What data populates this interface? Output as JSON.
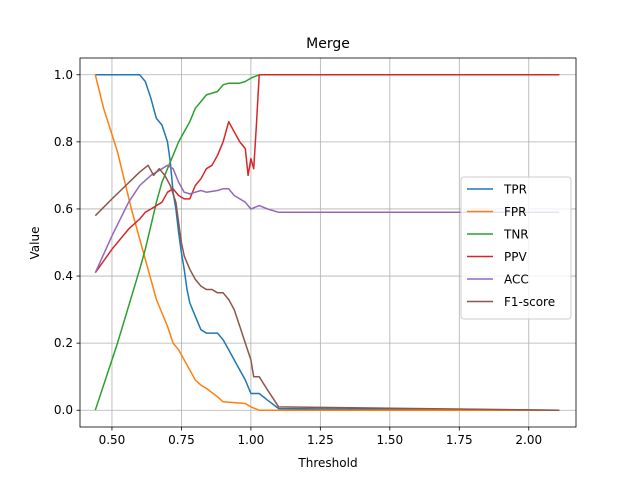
{
  "chart_data": {
    "type": "line",
    "title": "Merge",
    "xlabel": "Threshold",
    "ylabel": "Value",
    "xlim": [
      0.385,
      2.17
    ],
    "ylim": [
      -0.05,
      1.05
    ],
    "xticks": [
      0.5,
      0.75,
      1.0,
      1.25,
      1.5,
      1.75,
      2.0
    ],
    "xtick_labels": [
      "0.50",
      "0.75",
      "1.00",
      "1.25",
      "1.50",
      "1.75",
      "2.00"
    ],
    "yticks": [
      0.0,
      0.2,
      0.4,
      0.6,
      0.8,
      1.0
    ],
    "ytick_labels": [
      "0.0",
      "0.2",
      "0.4",
      "0.6",
      "0.8",
      "1.0"
    ],
    "grid": true,
    "legend_position": "center-right",
    "series": [
      {
        "name": "TPR",
        "color": "#1f77b4",
        "points": [
          [
            0.44,
            1.0
          ],
          [
            0.6,
            1.0
          ],
          [
            0.62,
            0.98
          ],
          [
            0.64,
            0.93
          ],
          [
            0.65,
            0.9
          ],
          [
            0.66,
            0.87
          ],
          [
            0.68,
            0.85
          ],
          [
            0.7,
            0.8
          ],
          [
            0.71,
            0.74
          ],
          [
            0.72,
            0.65
          ],
          [
            0.73,
            0.6
          ],
          [
            0.74,
            0.53
          ],
          [
            0.75,
            0.47
          ],
          [
            0.76,
            0.42
          ],
          [
            0.77,
            0.36
          ],
          [
            0.78,
            0.32
          ],
          [
            0.8,
            0.28
          ],
          [
            0.82,
            0.24
          ],
          [
            0.84,
            0.23
          ],
          [
            0.88,
            0.23
          ],
          [
            0.9,
            0.21
          ],
          [
            0.92,
            0.18
          ],
          [
            0.94,
            0.15
          ],
          [
            0.96,
            0.12
          ],
          [
            0.98,
            0.09
          ],
          [
            1.0,
            0.05
          ],
          [
            1.03,
            0.05
          ],
          [
            1.06,
            0.03
          ],
          [
            1.1,
            0.005
          ],
          [
            2.11,
            0.0
          ]
        ]
      },
      {
        "name": "FPR",
        "color": "#ff7f0e",
        "points": [
          [
            0.44,
            1.0
          ],
          [
            0.47,
            0.9
          ],
          [
            0.52,
            0.77
          ],
          [
            0.57,
            0.6
          ],
          [
            0.62,
            0.45
          ],
          [
            0.66,
            0.33
          ],
          [
            0.7,
            0.25
          ],
          [
            0.72,
            0.2
          ],
          [
            0.74,
            0.18
          ],
          [
            0.76,
            0.15
          ],
          [
            0.78,
            0.12
          ],
          [
            0.8,
            0.09
          ],
          [
            0.82,
            0.075
          ],
          [
            0.84,
            0.065
          ],
          [
            0.88,
            0.04
          ],
          [
            0.9,
            0.025
          ],
          [
            0.98,
            0.02
          ],
          [
            1.0,
            0.01
          ],
          [
            1.03,
            0.0
          ],
          [
            2.11,
            0.0
          ]
        ]
      },
      {
        "name": "TNR",
        "color": "#2ca02c",
        "points": [
          [
            0.44,
            0.0
          ],
          [
            0.52,
            0.2
          ],
          [
            0.6,
            0.42
          ],
          [
            0.62,
            0.48
          ],
          [
            0.64,
            0.55
          ],
          [
            0.66,
            0.62
          ],
          [
            0.68,
            0.68
          ],
          [
            0.7,
            0.72
          ],
          [
            0.72,
            0.76
          ],
          [
            0.74,
            0.8
          ],
          [
            0.76,
            0.83
          ],
          [
            0.78,
            0.86
          ],
          [
            0.8,
            0.9
          ],
          [
            0.82,
            0.92
          ],
          [
            0.84,
            0.94
          ],
          [
            0.88,
            0.95
          ],
          [
            0.9,
            0.97
          ],
          [
            0.92,
            0.975
          ],
          [
            0.96,
            0.975
          ],
          [
            0.98,
            0.98
          ],
          [
            1.0,
            0.99
          ],
          [
            1.03,
            1.0
          ],
          [
            2.11,
            1.0
          ]
        ]
      },
      {
        "name": "PPV",
        "color": "#d62728",
        "points": [
          [
            0.44,
            0.41
          ],
          [
            0.5,
            0.48
          ],
          [
            0.56,
            0.54
          ],
          [
            0.6,
            0.57
          ],
          [
            0.62,
            0.59
          ],
          [
            0.64,
            0.6
          ],
          [
            0.66,
            0.61
          ],
          [
            0.68,
            0.62
          ],
          [
            0.7,
            0.65
          ],
          [
            0.72,
            0.66
          ],
          [
            0.74,
            0.64
          ],
          [
            0.76,
            0.63
          ],
          [
            0.78,
            0.63
          ],
          [
            0.8,
            0.67
          ],
          [
            0.82,
            0.69
          ],
          [
            0.84,
            0.72
          ],
          [
            0.86,
            0.73
          ],
          [
            0.88,
            0.76
          ],
          [
            0.9,
            0.8
          ],
          [
            0.92,
            0.86
          ],
          [
            0.94,
            0.83
          ],
          [
            0.96,
            0.8
          ],
          [
            0.98,
            0.78
          ],
          [
            0.99,
            0.7
          ],
          [
            1.0,
            0.75
          ],
          [
            1.01,
            0.72
          ],
          [
            1.02,
            0.85
          ],
          [
            1.03,
            1.0
          ],
          [
            2.11,
            1.0
          ]
        ]
      },
      {
        "name": "ACC",
        "color": "#9467bd",
        "points": [
          [
            0.44,
            0.41
          ],
          [
            0.5,
            0.52
          ],
          [
            0.56,
            0.62
          ],
          [
            0.6,
            0.67
          ],
          [
            0.64,
            0.7
          ],
          [
            0.68,
            0.72
          ],
          [
            0.7,
            0.73
          ],
          [
            0.72,
            0.72
          ],
          [
            0.74,
            0.68
          ],
          [
            0.76,
            0.65
          ],
          [
            0.78,
            0.645
          ],
          [
            0.8,
            0.65
          ],
          [
            0.82,
            0.655
          ],
          [
            0.84,
            0.65
          ],
          [
            0.88,
            0.655
          ],
          [
            0.9,
            0.66
          ],
          [
            0.92,
            0.66
          ],
          [
            0.94,
            0.64
          ],
          [
            0.96,
            0.63
          ],
          [
            0.98,
            0.62
          ],
          [
            1.0,
            0.6
          ],
          [
            1.03,
            0.61
          ],
          [
            1.06,
            0.6
          ],
          [
            1.1,
            0.59
          ],
          [
            2.11,
            0.59
          ]
        ]
      },
      {
        "name": "F1-score",
        "color": "#8c564b",
        "points": [
          [
            0.44,
            0.58
          ],
          [
            0.5,
            0.63
          ],
          [
            0.55,
            0.67
          ],
          [
            0.6,
            0.71
          ],
          [
            0.63,
            0.73
          ],
          [
            0.65,
            0.7
          ],
          [
            0.67,
            0.72
          ],
          [
            0.69,
            0.7
          ],
          [
            0.71,
            0.67
          ],
          [
            0.73,
            0.62
          ],
          [
            0.74,
            0.56
          ],
          [
            0.75,
            0.5
          ],
          [
            0.76,
            0.46
          ],
          [
            0.78,
            0.42
          ],
          [
            0.8,
            0.39
          ],
          [
            0.82,
            0.37
          ],
          [
            0.84,
            0.36
          ],
          [
            0.86,
            0.36
          ],
          [
            0.88,
            0.35
          ],
          [
            0.9,
            0.35
          ],
          [
            0.92,
            0.33
          ],
          [
            0.94,
            0.3
          ],
          [
            0.96,
            0.25
          ],
          [
            0.98,
            0.2
          ],
          [
            1.0,
            0.15
          ],
          [
            1.01,
            0.1
          ],
          [
            1.03,
            0.1
          ],
          [
            1.06,
            0.06
          ],
          [
            1.1,
            0.01
          ],
          [
            2.11,
            0.0
          ]
        ]
      }
    ]
  }
}
